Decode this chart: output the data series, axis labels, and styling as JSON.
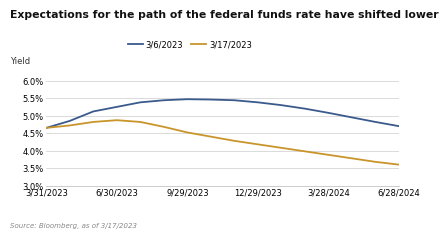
{
  "title": "Expectations for the path of the federal funds rate have shifted lower",
  "ylabel": "Yield",
  "source": "Source: Bloomberg, as of 3/17/2023",
  "legend": [
    "3/6/2023",
    "3/17/2023"
  ],
  "line_colors": [
    "#3a5a8c",
    "#c9952a"
  ],
  "x_labels": [
    "3/31/2023",
    "6/30/2023",
    "9/29/2023",
    "12/29/2023",
    "3/28/2024",
    "6/28/2024"
  ],
  "x_values": [
    0,
    3,
    6,
    9,
    12,
    15
  ],
  "ylim": [
    3.0,
    6.25
  ],
  "yticks": [
    3.0,
    3.5,
    4.0,
    4.5,
    5.0,
    5.5,
    6.0
  ],
  "line1_x": [
    0,
    1,
    2,
    3,
    4,
    5,
    6,
    7,
    8,
    9,
    10,
    11,
    12,
    13,
    14,
    15
  ],
  "line1_y": [
    4.65,
    4.85,
    5.12,
    5.25,
    5.38,
    5.44,
    5.47,
    5.46,
    5.44,
    5.38,
    5.3,
    5.2,
    5.08,
    4.95,
    4.82,
    4.7
  ],
  "line2_x": [
    0,
    1,
    2,
    3,
    4,
    5,
    6,
    7,
    8,
    9,
    10,
    11,
    12,
    13,
    14,
    15
  ],
  "line2_y": [
    4.65,
    4.72,
    4.82,
    4.87,
    4.82,
    4.68,
    4.52,
    4.4,
    4.28,
    4.18,
    4.08,
    3.98,
    3.88,
    3.78,
    3.68,
    3.6
  ],
  "grid_color": "#cccccc",
  "title_fontsize": 7.8,
  "label_fontsize": 6.0,
  "tick_fontsize": 6.0,
  "source_fontsize": 5.0
}
